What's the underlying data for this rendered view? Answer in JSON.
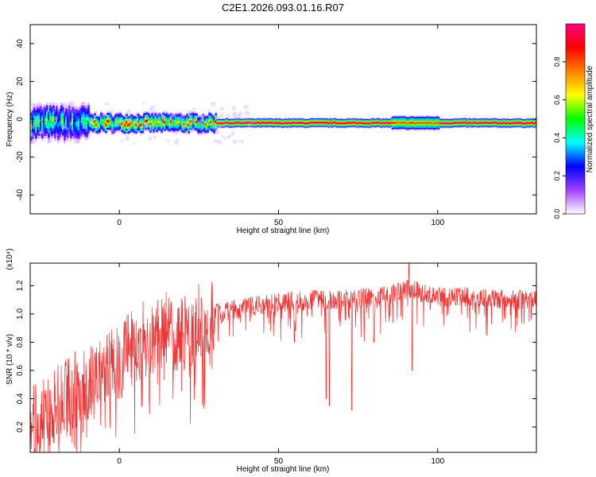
{
  "figure": {
    "title": "C2E1.2026.093.01.16.R07"
  },
  "chart_data": [
    {
      "type": "heatmap",
      "xlabel": "Height of straight line (km)",
      "ylabel": "Frequency (Hz)",
      "xlim": [
        -28,
        131
      ],
      "ylim": [
        -50,
        50
      ],
      "xticks": [
        0,
        50,
        100
      ],
      "yticks": [
        -40,
        -20,
        0,
        20,
        40
      ],
      "grid": false,
      "colorbar": {
        "label": "Normalized spectral amplitude",
        "range": [
          0.0,
          1.0
        ],
        "ticks": [
          0.0,
          0.2,
          0.4,
          0.6,
          0.8
        ],
        "colormap": [
          "#ffffff",
          "#a040ff",
          "#0000ff",
          "#00ffff",
          "#00ff00",
          "#ffff00",
          "#ff8000",
          "#ff0000",
          "#ff0080"
        ]
      },
      "ridge_center_hz": -2.0,
      "ridge_segments": [
        {
          "from_km": -28,
          "to_km": -10,
          "amplitude": 0.45,
          "spread_hz": 7
        },
        {
          "from_km": -10,
          "to_km": 30,
          "amplitude": 0.7,
          "spread_hz": 4
        },
        {
          "from_km": 30,
          "to_km": 85,
          "amplitude": 0.95,
          "spread_hz": 2
        },
        {
          "from_km": 85,
          "to_km": 100,
          "amplitude": 0.8,
          "spread_hz": 3
        },
        {
          "from_km": 100,
          "to_km": 131,
          "amplitude": 0.95,
          "spread_hz": 2
        }
      ]
    },
    {
      "type": "line",
      "xlabel": "Height of straight line (km)",
      "ylabel": "SNR (10 * v/v)",
      "y_multiplier": "(x10⁴)",
      "xlim": [
        -28,
        131
      ],
      "ylim": [
        0.02,
        1.36
      ],
      "xticks": [
        0,
        50,
        100
      ],
      "yticks": [
        0.2,
        0.4,
        0.6,
        0.8,
        1.0,
        1.2
      ],
      "grid": false,
      "series": [
        {
          "color": "#ee3333",
          "envelope": {
            "x": [
              -28,
              -20,
              -15,
              -10,
              -5,
              0,
              5,
              10,
              15,
              20,
              25,
              30,
              40,
              50,
              60,
              70,
              80,
              85,
              90,
              95,
              100,
              110,
              120,
              131
            ],
            "y": [
              0.2,
              0.35,
              0.45,
              0.5,
              0.6,
              0.65,
              0.8,
              0.85,
              0.9,
              0.85,
              0.95,
              1.0,
              1.05,
              1.08,
              1.1,
              1.1,
              1.12,
              1.13,
              1.18,
              1.15,
              1.12,
              1.12,
              1.1,
              1.1
            ]
          },
          "notable_dips": [
            {
              "x": 55,
              "y": 0.8
            },
            {
              "x": 65,
              "y": 0.4
            },
            {
              "x": 66,
              "y": 0.35
            },
            {
              "x": 73,
              "y": 0.32
            },
            {
              "x": 80,
              "y": 0.8
            },
            {
              "x": 92,
              "y": 0.6
            }
          ],
          "peak": {
            "x": 91,
            "y": 1.36
          }
        }
      ]
    }
  ]
}
